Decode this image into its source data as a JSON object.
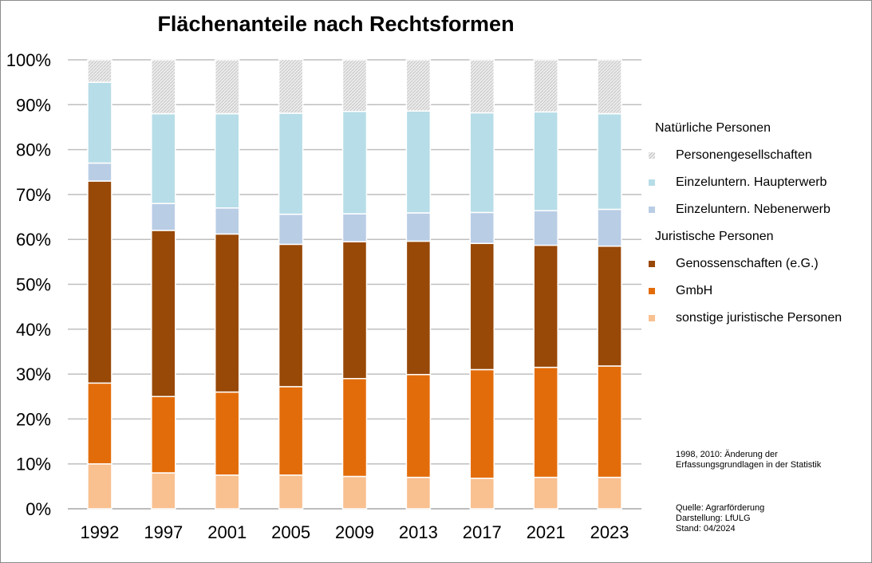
{
  "chart_data": {
    "type": "bar",
    "stacked": true,
    "title": "Flächenanteile nach Rechtsformen",
    "xlabel": "",
    "ylabel": "",
    "ylim": [
      0,
      1
    ],
    "yticks": [
      "0%",
      "10%",
      "20%",
      "30%",
      "40%",
      "50%",
      "60%",
      "70%",
      "80%",
      "90%",
      "100%"
    ],
    "grid": true,
    "legend_position": "right",
    "categories": [
      "1992",
      "1997",
      "2001",
      "2005",
      "2009",
      "2013",
      "2017",
      "2021",
      "2023"
    ],
    "series": [
      {
        "name": "sonstige juristische Personen",
        "color": "#f9c090",
        "values": [
          0.1,
          0.08,
          0.075,
          0.075,
          0.072,
          0.07,
          0.068,
          0.07,
          0.07
        ]
      },
      {
        "name": "GmbH",
        "color": "#e36c0a",
        "values": [
          0.18,
          0.17,
          0.185,
          0.197,
          0.218,
          0.229,
          0.242,
          0.245,
          0.248
        ]
      },
      {
        "name": "Genossenschaften (e.G.)",
        "color": "#984807",
        "values": [
          0.45,
          0.37,
          0.352,
          0.317,
          0.305,
          0.297,
          0.281,
          0.272,
          0.267
        ]
      },
      {
        "name": "Einzeluntern. Nebenerwerb",
        "color": "#b9cde5",
        "values": [
          0.04,
          0.06,
          0.058,
          0.067,
          0.062,
          0.063,
          0.069,
          0.077,
          0.082
        ]
      },
      {
        "name": "Einzeluntern. Haupterwerb",
        "color": "#b7dde8",
        "values": [
          0.18,
          0.2,
          0.21,
          0.225,
          0.228,
          0.227,
          0.222,
          0.22,
          0.213
        ]
      },
      {
        "name": "Personengesellschaften",
        "color": "#d9d9d9",
        "values": [
          0.05,
          0.12,
          0.12,
          0.12,
          0.115,
          0.114,
          0.118,
          0.116,
          0.12
        ]
      }
    ]
  },
  "legend": {
    "group_natural": "Natürliche Personen",
    "group_juristic": "Juristische Personen",
    "natural_items": [
      {
        "label": "Personengesellschaften",
        "color": "#d9d9d9"
      },
      {
        "label": "Einzeluntern. Haupterwerb",
        "color": "#b7dde8"
      },
      {
        "label": "Einzeluntern. Nebenerwerb",
        "color": "#b9cde5"
      }
    ],
    "juristic_items": [
      {
        "label": "Genossenschaften (e.G.)",
        "color": "#984807"
      },
      {
        "label": "GmbH",
        "color": "#e36c0a"
      },
      {
        "label": "sonstige juristische Personen",
        "color": "#f9c090"
      }
    ]
  },
  "notes": {
    "change_line1": "1998, 2010: Änderung der",
    "change_line2": "Erfassungsgrundlagen in der Statistik",
    "source": "Quelle: Agrarförderung",
    "credit": "Darstellung: LfULG",
    "date": "Stand: 04/2024"
  }
}
